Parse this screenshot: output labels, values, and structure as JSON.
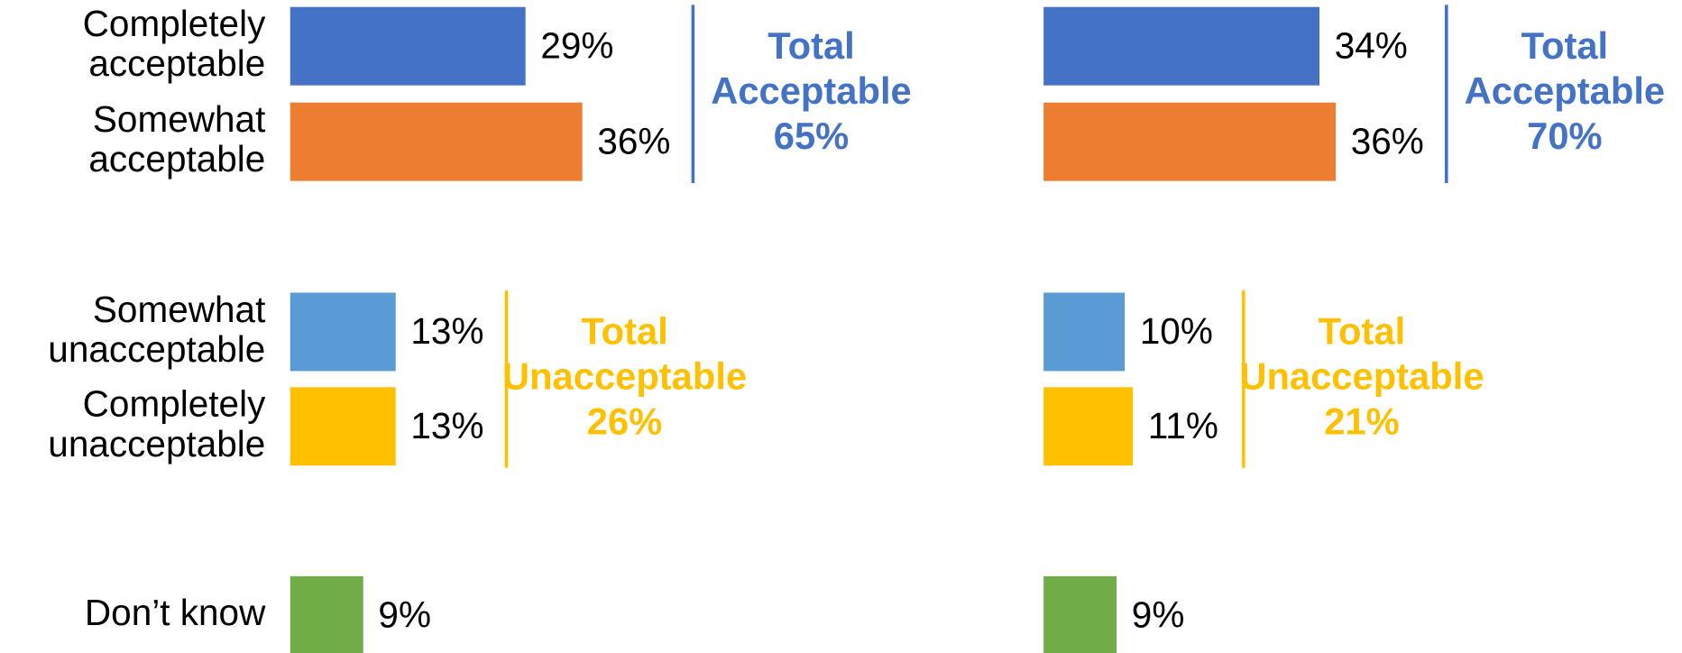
{
  "chart_data": {
    "type": "bar",
    "orientation": "horizontal",
    "categories": [
      "Completely acceptable",
      "Somewhat acceptable",
      "Somewhat unacceptable",
      "Completely unacceptable",
      "Don’t know"
    ],
    "colors": [
      "#4472c4",
      "#ed7d31",
      "#5b9bd5",
      "#ffc000",
      "#70ad47"
    ],
    "panels": [
      {
        "values": [
          29,
          36,
          13,
          13,
          9
        ],
        "value_labels": [
          "29%",
          "36%",
          "13%",
          "13%",
          "9%"
        ],
        "groups": [
          {
            "label": "Total Acceptable",
            "value": 65,
            "value_label": "65%",
            "color": "#4472c4"
          },
          {
            "label": "Total Unacceptable",
            "value": 26,
            "value_label": "26%",
            "color": "#ffc000"
          }
        ]
      },
      {
        "values": [
          34,
          36,
          10,
          11,
          9
        ],
        "value_labels": [
          "34%",
          "36%",
          "10%",
          "11%",
          "9%"
        ],
        "groups": [
          {
            "label": "Total Acceptable",
            "value": 70,
            "value_label": "70%",
            "color": "#4472c4"
          },
          {
            "label": "Total Unacceptable",
            "value": 21,
            "value_label": "21%",
            "color": "#ffc000"
          }
        ]
      }
    ]
  }
}
